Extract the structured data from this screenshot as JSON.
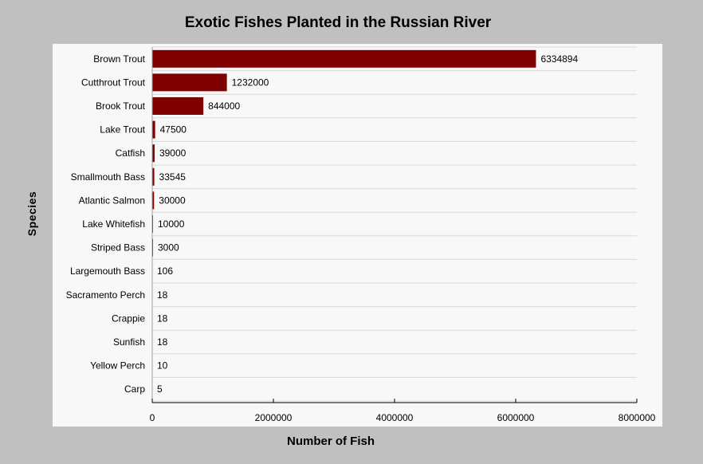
{
  "chart_data": {
    "type": "bar",
    "orientation": "horizontal",
    "title": "Exotic Fishes Planted in the Russian River",
    "xlabel": "Number of Fish",
    "ylabel": "Species",
    "categories": [
      "Brown Trout",
      "Cutthrout Trout",
      "Brook Trout",
      "Lake Trout",
      "Catfish",
      "Smallmouth Bass",
      "Atlantic Salmon",
      "Lake Whitefish",
      "Striped Bass",
      "Largemouth Bass",
      "Sacramento Perch",
      "Crappie",
      "Sunfish",
      "Yellow Perch",
      "Carp"
    ],
    "values": [
      6334894,
      1232000,
      844000,
      47500,
      39000,
      33545,
      30000,
      10000,
      3000,
      106,
      18,
      18,
      18,
      10,
      5
    ],
    "xlim": [
      0,
      8000000
    ],
    "xticks": [
      0,
      2000000,
      4000000,
      6000000,
      8000000
    ],
    "bar_color": "#7f0000",
    "grid": "horizontal",
    "legend": "none"
  }
}
